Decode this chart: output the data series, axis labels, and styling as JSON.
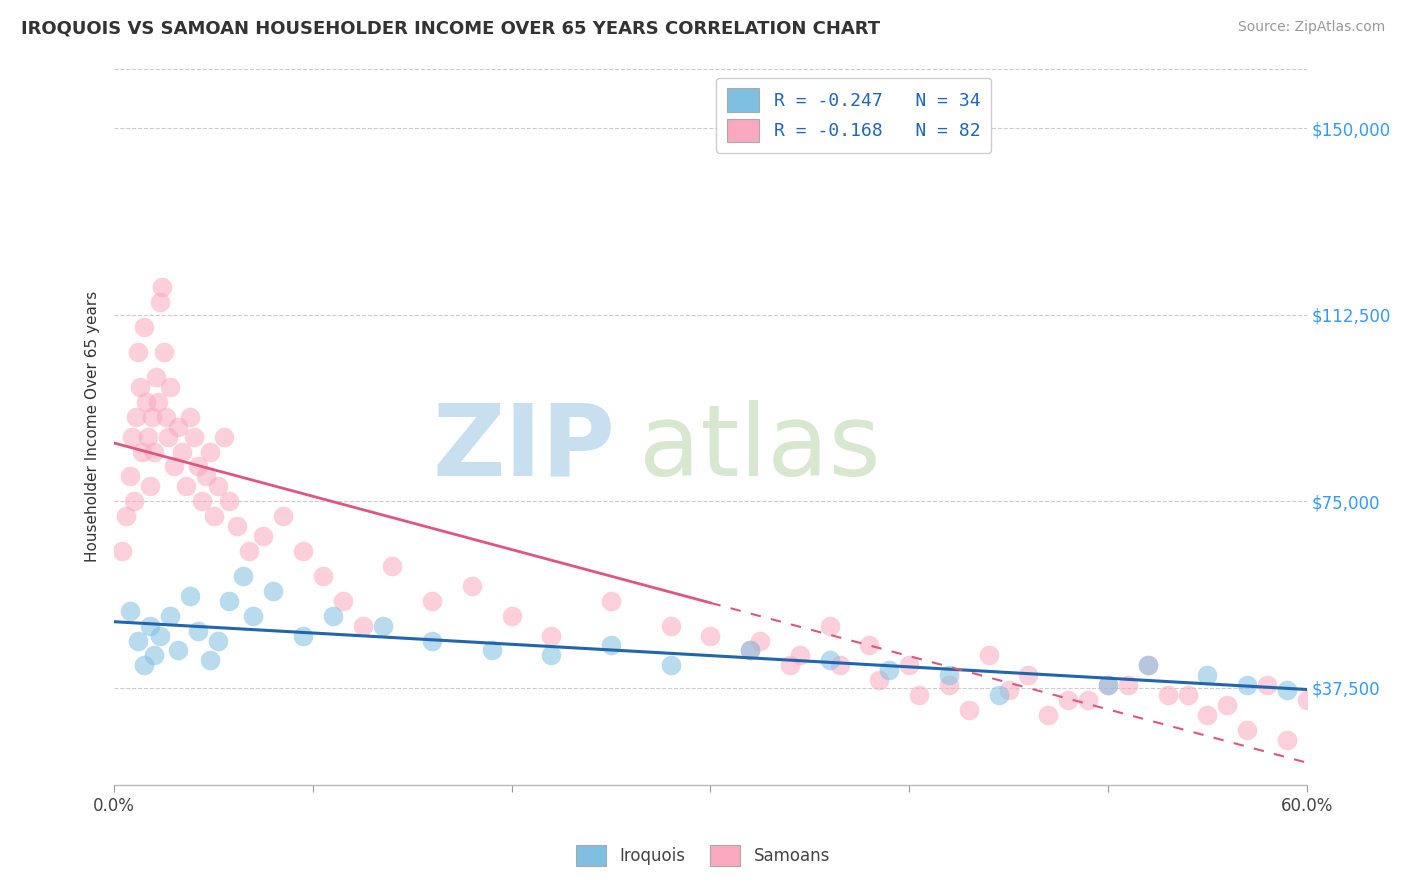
{
  "title": "IROQUOIS VS SAMOAN HOUSEHOLDER INCOME OVER 65 YEARS CORRELATION CHART",
  "source": "Source: ZipAtlas.com",
  "ylabel": "Householder Income Over 65 years",
  "xlim": [
    0.0,
    60.0
  ],
  "ylim": [
    18000,
    162000
  ],
  "yticks": [
    37500,
    75000,
    112500,
    150000
  ],
  "ytick_labels": [
    "$37,500",
    "$75,000",
    "$112,500",
    "$150,000"
  ],
  "color_iroquois": "#7fbfdf",
  "color_samoans": "#f9a8c0",
  "color_iroq_line": "#2166ac",
  "color_samo_line": "#e05580",
  "legend_row1": "R = -0.247   N = 34",
  "legend_row2": "R = -0.168   N = 82",
  "legend_label1": "Iroquois",
  "legend_label2": "Samoans",
  "iroquois_x": [
    0.8,
    1.2,
    1.5,
    1.8,
    2.0,
    2.3,
    2.8,
    3.2,
    3.8,
    4.2,
    4.8,
    5.2,
    5.8,
    6.5,
    7.0,
    8.0,
    9.5,
    11.0,
    13.5,
    16.0,
    19.0,
    22.0,
    25.0,
    28.0,
    32.0,
    36.0,
    39.0,
    42.0,
    44.5,
    50.0,
    52.0,
    55.0,
    57.0,
    59.0
  ],
  "iroquois_y": [
    53000,
    47000,
    42000,
    50000,
    44000,
    48000,
    52000,
    45000,
    56000,
    49000,
    43000,
    47000,
    55000,
    60000,
    52000,
    57000,
    48000,
    52000,
    50000,
    47000,
    45000,
    44000,
    46000,
    42000,
    45000,
    43000,
    41000,
    40000,
    36000,
    38000,
    42000,
    40000,
    38000,
    37000
  ],
  "samoans_x": [
    0.4,
    0.6,
    0.8,
    0.9,
    1.0,
    1.1,
    1.2,
    1.3,
    1.4,
    1.5,
    1.6,
    1.7,
    1.8,
    1.9,
    2.0,
    2.1,
    2.2,
    2.3,
    2.4,
    2.5,
    2.6,
    2.7,
    2.8,
    3.0,
    3.2,
    3.4,
    3.6,
    3.8,
    4.0,
    4.2,
    4.4,
    4.6,
    4.8,
    5.0,
    5.2,
    5.5,
    5.8,
    6.2,
    6.8,
    7.5,
    8.5,
    9.5,
    10.5,
    11.5,
    12.5,
    14.0,
    16.0,
    18.0,
    20.0,
    22.0,
    25.0,
    28.0,
    30.0,
    32.0,
    34.0,
    36.0,
    38.0,
    40.0,
    42.0,
    44.0,
    46.0,
    48.0,
    50.0,
    52.0,
    54.0,
    56.0,
    58.0,
    60.0,
    32.5,
    34.5,
    36.5,
    38.5,
    40.5,
    43.0,
    45.0,
    47.0,
    49.0,
    51.0,
    53.0,
    55.0,
    57.0,
    59.0
  ],
  "samoans_y": [
    65000,
    72000,
    80000,
    88000,
    75000,
    92000,
    105000,
    98000,
    85000,
    110000,
    95000,
    88000,
    78000,
    92000,
    85000,
    100000,
    95000,
    115000,
    118000,
    105000,
    92000,
    88000,
    98000,
    82000,
    90000,
    85000,
    78000,
    92000,
    88000,
    82000,
    75000,
    80000,
    85000,
    72000,
    78000,
    88000,
    75000,
    70000,
    65000,
    68000,
    72000,
    65000,
    60000,
    55000,
    50000,
    62000,
    55000,
    58000,
    52000,
    48000,
    55000,
    50000,
    48000,
    45000,
    42000,
    50000,
    46000,
    42000,
    38000,
    44000,
    40000,
    35000,
    38000,
    42000,
    36000,
    34000,
    38000,
    35000,
    47000,
    44000,
    42000,
    39000,
    36000,
    33000,
    37000,
    32000,
    35000,
    38000,
    36000,
    32000,
    29000,
    27000
  ]
}
